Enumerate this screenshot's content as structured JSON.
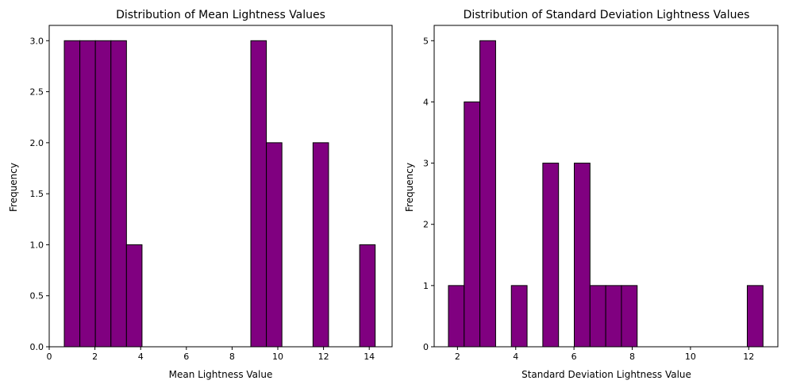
{
  "chart_data": [
    {
      "type": "bar",
      "title": "Distribution of Mean Lightness Values",
      "xlabel": "Mean Lightness Value",
      "ylabel": "Frequency",
      "xlim": [
        0,
        15
      ],
      "ylim": [
        0,
        3.15
      ],
      "xticks": [
        "0",
        "2",
        "4",
        "6",
        "8",
        "10",
        "12",
        "14"
      ],
      "yticks": [
        "0.0",
        "0.5",
        "1.0",
        "1.5",
        "2.0",
        "2.5",
        "3.0"
      ],
      "bin_edges": [
        0.66,
        1.34,
        2.02,
        2.7,
        3.38,
        4.06,
        4.74,
        5.42,
        6.1,
        6.78,
        7.46,
        8.14,
        8.82,
        9.5,
        10.18,
        10.86,
        11.54,
        12.22,
        12.9,
        13.58,
        14.26
      ],
      "values": [
        3,
        3,
        3,
        3,
        1,
        0,
        0,
        0,
        0,
        0,
        0,
        0,
        3,
        2,
        0,
        0,
        2,
        0,
        0,
        1
      ],
      "color": "#800080",
      "edgecolor": "#000000",
      "grid": false
    },
    {
      "type": "bar",
      "title": "Distribution of Standard Deviation Lightness Values",
      "xlabel": "Standard Deviation Lightness Value",
      "ylabel": "Frequency",
      "xlim": [
        1.2,
        13.0
      ],
      "ylim": [
        0,
        5.25
      ],
      "xticks": [
        "2",
        "4",
        "6",
        "8",
        "10",
        "12"
      ],
      "yticks": [
        "0",
        "1",
        "2",
        "3",
        "4",
        "5"
      ],
      "bin_edges": [
        1.69,
        2.23,
        2.77,
        3.31,
        3.85,
        4.39,
        4.93,
        5.47,
        6.01,
        6.55,
        7.09,
        7.63,
        8.17,
        8.71,
        9.25,
        9.79,
        10.33,
        10.87,
        11.41,
        11.95,
        12.49
      ],
      "values": [
        1,
        4,
        5,
        0,
        1,
        0,
        3,
        0,
        3,
        1,
        1,
        1,
        0,
        0,
        0,
        0,
        0,
        0,
        0,
        1
      ],
      "color": "#800080",
      "edgecolor": "#000000",
      "grid": false
    }
  ]
}
